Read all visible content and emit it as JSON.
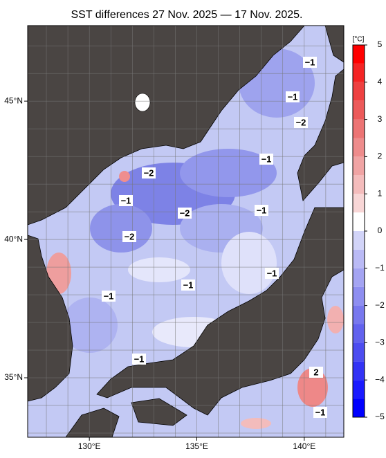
{
  "map": {
    "title": "SST differences 27 Nov. 2025 — 17 Nov. 2025.",
    "lonlim": [
      127.13,
      141.84
    ],
    "latlim": [
      32.85,
      47.73
    ],
    "grid_step": 1,
    "lon_ticks": [
      {
        "value": 130,
        "label": "130°E"
      },
      {
        "value": 135,
        "label": "135°E"
      },
      {
        "value": 140,
        "label": "140°E"
      }
    ],
    "lat_ticks": [
      {
        "value": 35,
        "label": "35°N"
      },
      {
        "value": 40,
        "label": "40°N"
      },
      {
        "value": 45,
        "label": "45°N"
      }
    ],
    "contour_labels": [
      "−1",
      "−1",
      "−1",
      "−1",
      "−1",
      "−1",
      "−1",
      "−1",
      "−1",
      "−1",
      "−2",
      "−2",
      "−2",
      "−2",
      "2"
    ],
    "colorbar": {
      "unit": "[°C]",
      "lim": [
        -5,
        5
      ],
      "ticks": [
        {
          "value": -5,
          "label": "−5"
        },
        {
          "value": -4,
          "label": "−4"
        },
        {
          "value": -3,
          "label": "−3"
        },
        {
          "value": -2,
          "label": "−2"
        },
        {
          "value": -1,
          "label": "−1"
        },
        0,
        1,
        2,
        3,
        4,
        5
      ],
      "colors": [
        "#0000ff",
        "#1a1aff",
        "#3333f5",
        "#4d4df0",
        "#6262ee",
        "#7878ee",
        "#8e8ef0",
        "#a4a4f2",
        "#babaf5",
        "#d2d4f8",
        "#ffffff",
        "#f8d6d6",
        "#f4bcbc",
        "#f0a4a4",
        "#ee8c8c",
        "#ec7474",
        "#ec5a5a",
        "#ee4040",
        "#f42424",
        "#ff0000"
      ]
    }
  }
}
